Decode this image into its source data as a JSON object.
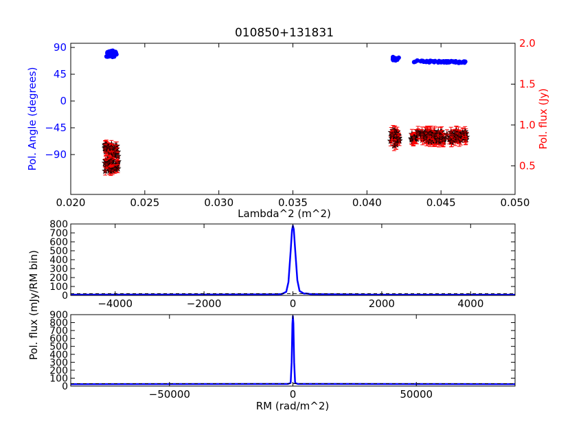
{
  "chart_data": [
    {
      "type": "scatter",
      "title": "010850+131831",
      "xlabel": "Lambda^2 (m^2)",
      "ylabel_left": "Pol. Angle (degrees)",
      "ylabel_right": "Pol. flux (Jy)",
      "xlim": [
        0.02,
        0.05
      ],
      "x_ticks": [
        0.02,
        0.025,
        0.03,
        0.035,
        0.04,
        0.045,
        0.05
      ],
      "x_tick_labels": [
        "0.020",
        "0.025",
        "0.030",
        "0.035",
        "0.040",
        "0.045",
        "0.050"
      ],
      "ylim_left": [
        -157,
        97
      ],
      "y_ticks_left": [
        90,
        45,
        0,
        -45,
        -90
      ],
      "y_tick_labels_left": [
        "90",
        "45",
        "0",
        "−45",
        "−90"
      ],
      "ylim_right": [
        0.15,
        2.0
      ],
      "y_ticks_right": [
        2.0,
        1.5,
        1.0,
        0.5
      ],
      "y_tick_labels_right": [
        "2.0",
        "1.5",
        "1.0",
        "0.5"
      ],
      "grid": false,
      "colors": {
        "angle": "#0000ff",
        "flux_marker": "#8b0000",
        "flux_error": "#ff0000",
        "frame": "#000000"
      },
      "series": [
        {
          "axis": "left",
          "marker": "circle",
          "segments": [
            {
              "x_range": [
                0.0224,
                0.0231
              ],
              "y_base": 79,
              "y_jitter": 6,
              "count": 35
            },
            {
              "x_range": [
                0.0417,
                0.0423
              ],
              "y_base": 71,
              "y_jitter": 3,
              "count": 14
            },
            {
              "x_range": [
                0.043,
                0.0467
              ],
              "y_base": 67,
              "y_slope_per_unit": -500,
              "y_jitter": 1.5,
              "count": 70
            }
          ]
        },
        {
          "axis": "right",
          "marker": "star",
          "error_bars": true,
          "segments": [
            {
              "x_range": [
                0.0223,
                0.0232
              ],
              "y_base": 0.6,
              "y_jitter": 0.17,
              "y_err": 0.05,
              "count": 70
            },
            {
              "x_range": [
                0.0416,
                0.0422
              ],
              "y_base": 0.84,
              "y_jitter": 0.1,
              "y_err": 0.06,
              "count": 25
            },
            {
              "x_range": [
                0.043,
                0.0468
              ],
              "y_base": 0.86,
              "y_jitter": 0.07,
              "y_err": 0.06,
              "count": 120
            }
          ]
        }
      ]
    },
    {
      "type": "line",
      "xlim": [
        -5000,
        5000
      ],
      "x_ticks": [
        -4000,
        -2000,
        0,
        2000,
        4000
      ],
      "x_tick_labels": [
        "−4000",
        "−2000",
        "0",
        "2000",
        "4000"
      ],
      "ylim": [
        0,
        800
      ],
      "y_ticks": [
        0,
        100,
        200,
        300,
        400,
        500,
        600,
        700,
        800
      ],
      "y_tick_labels": [
        "0",
        "100",
        "200",
        "300",
        "400",
        "500",
        "600",
        "700",
        "800"
      ],
      "series": [
        {
          "style": "solid",
          "color": "#0000ff",
          "x": [
            -5000,
            -2000,
            -400,
            -250,
            -150,
            -100,
            -50,
            -20,
            0,
            20,
            50,
            100,
            150,
            250,
            300,
            400,
            2000,
            5000
          ],
          "y": [
            8,
            10,
            12,
            15,
            40,
            150,
            500,
            730,
            780,
            740,
            520,
            170,
            50,
            20,
            22,
            14,
            8,
            8
          ]
        },
        {
          "style": "dashed",
          "color": "#000000",
          "x": [
            -5000,
            5000
          ],
          "y": [
            20,
            20
          ]
        }
      ]
    },
    {
      "type": "line",
      "xlabel": "RM (rad/m^2)",
      "xlim": [
        -90000,
        90000
      ],
      "x_ticks": [
        -50000,
        0,
        50000
      ],
      "x_tick_labels": [
        "−50000",
        "0",
        "50000"
      ],
      "ylim": [
        0,
        900
      ],
      "y_ticks": [
        0,
        100,
        200,
        300,
        400,
        500,
        600,
        700,
        800,
        900
      ],
      "y_tick_labels": [
        "0",
        "100",
        "200",
        "300",
        "400",
        "500",
        "600",
        "700",
        "800",
        "900"
      ],
      "series": [
        {
          "style": "solid",
          "color": "#0000ff",
          "x": [
            -90000,
            -50000,
            -2000,
            -900,
            -500,
            -200,
            0,
            200,
            500,
            900,
            2000,
            50000,
            90000
          ],
          "y": [
            25,
            26,
            27,
            40,
            300,
            780,
            880,
            790,
            300,
            40,
            27,
            26,
            25
          ]
        },
        {
          "style": "dashed",
          "color": "#000000",
          "x": [
            -90000,
            90000
          ],
          "y": [
            30,
            30
          ]
        }
      ]
    }
  ],
  "shared_ylabel_lower": "Pol. flux (mJy/RM bin)"
}
